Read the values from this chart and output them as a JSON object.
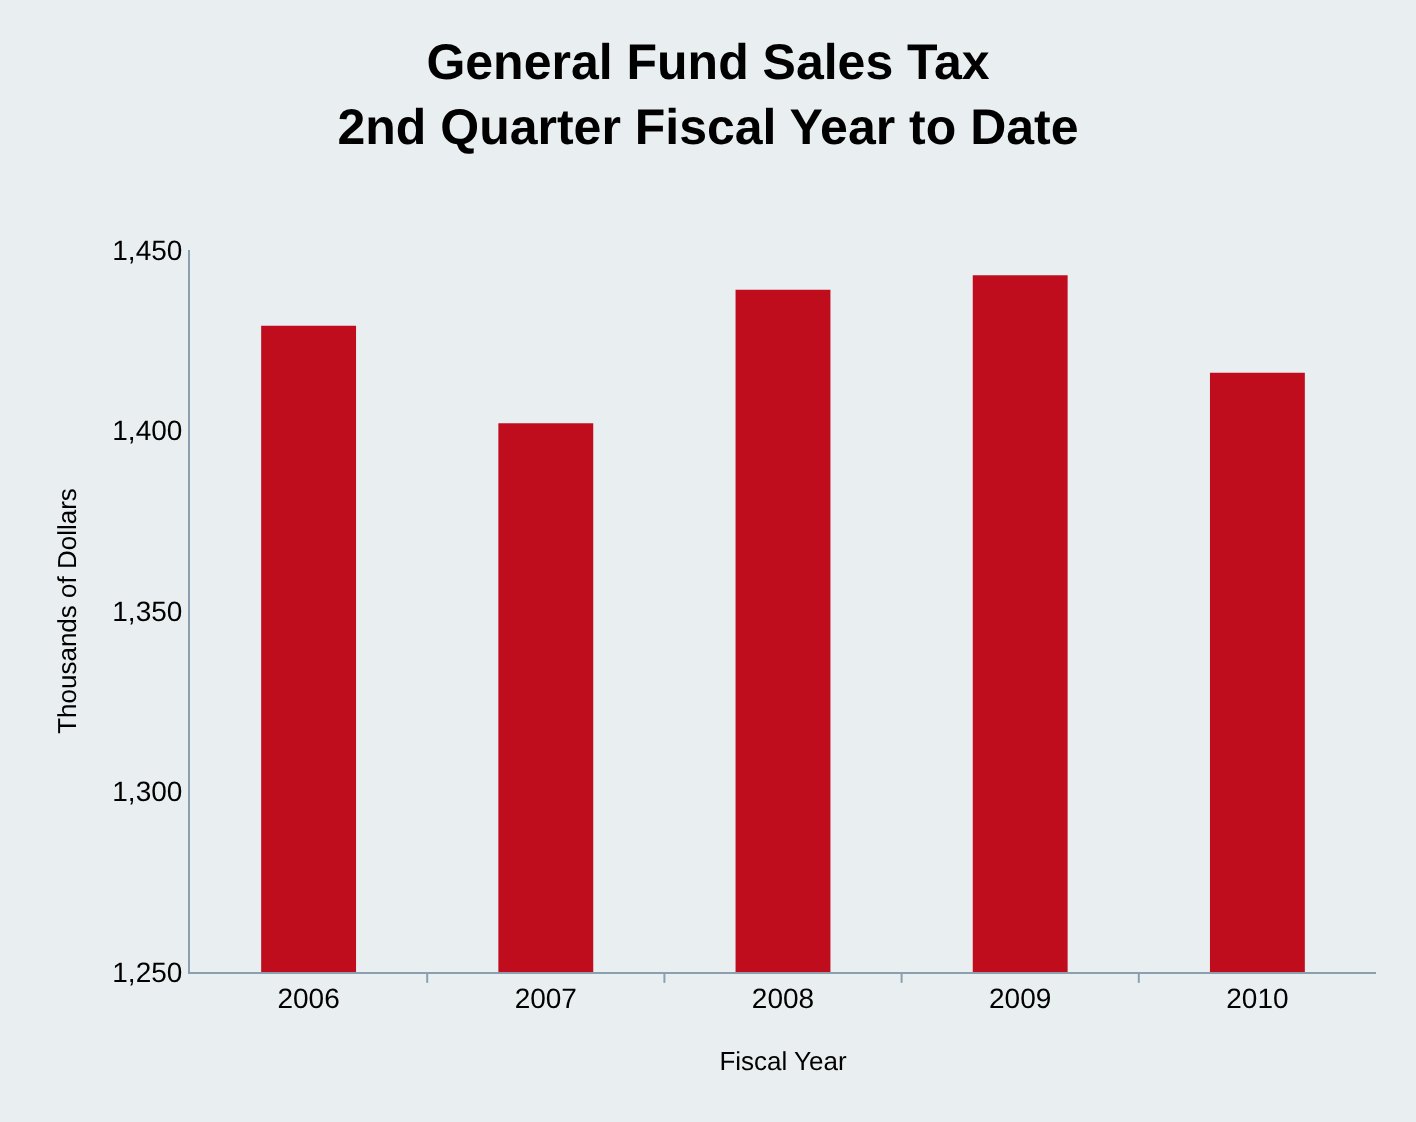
{
  "chart_data": {
    "type": "bar",
    "title": "General Fund Sales Tax\n2nd Quarter Fiscal Year to Date",
    "xlabel": "Fiscal Year",
    "ylabel": "Thousands of Dollars",
    "categories": [
      "2006",
      "2007",
      "2008",
      "2009",
      "2010"
    ],
    "values": [
      1429,
      1402,
      1439,
      1443,
      1416
    ],
    "color": "#c00d1e",
    "ylim": [
      1250,
      1450
    ],
    "yticks": [
      {
        "value": 1250,
        "label": "1,250"
      },
      {
        "value": 1300,
        "label": "1,300"
      },
      {
        "value": 1350,
        "label": "1,350"
      },
      {
        "value": 1400,
        "label": "1,400"
      },
      {
        "value": 1450,
        "label": "1,450"
      }
    ],
    "grid": false,
    "legend": false
  }
}
